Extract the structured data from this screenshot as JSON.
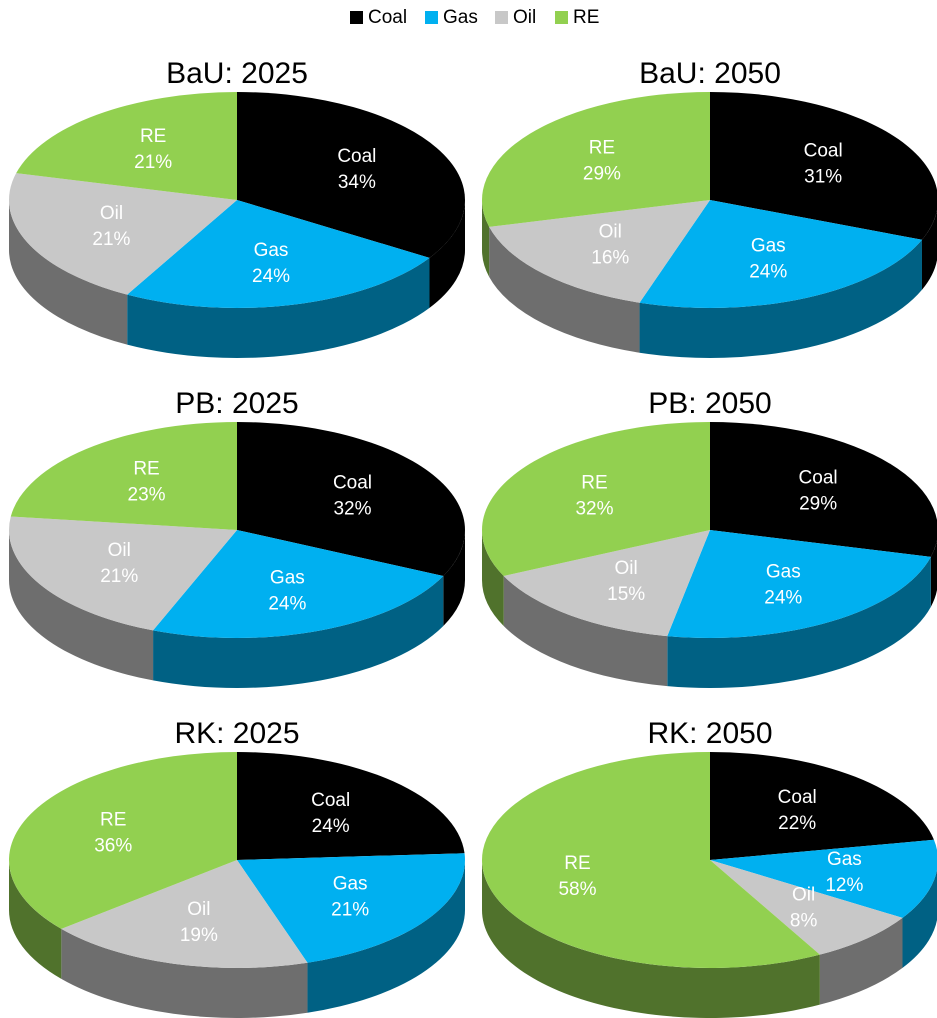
{
  "legend": {
    "labels": [
      "Coal",
      "Gas",
      "Oil",
      "RE"
    ],
    "colors": [
      "#000000",
      "#00b0f0",
      "#c8c8c8",
      "#92d050"
    ]
  },
  "chart_data": [
    {
      "type": "pie",
      "title": "BaU: 2025",
      "categories": [
        "Coal",
        "Gas",
        "Oil",
        "RE"
      ],
      "values": [
        34,
        24,
        21,
        21
      ],
      "value_labels": [
        "34%",
        "24%",
        "21%",
        "21%"
      ],
      "colors": [
        "#000000",
        "#00b0f0",
        "#c8c8c8",
        "#92d050"
      ]
    },
    {
      "type": "pie",
      "title": "BaU: 2050",
      "categories": [
        "Coal",
        "Gas",
        "Oil",
        "RE"
      ],
      "values": [
        31,
        24,
        16,
        29
      ],
      "value_labels": [
        "31%",
        "24%",
        "16%",
        "29%"
      ],
      "colors": [
        "#000000",
        "#00b0f0",
        "#c8c8c8",
        "#92d050"
      ]
    },
    {
      "type": "pie",
      "title": "PB: 2025",
      "categories": [
        "Coal",
        "Gas",
        "Oil",
        "RE"
      ],
      "values": [
        32,
        24,
        21,
        23
      ],
      "value_labels": [
        "32%",
        "24%",
        "21%",
        "23%"
      ],
      "colors": [
        "#000000",
        "#00b0f0",
        "#c8c8c8",
        "#92d050"
      ]
    },
    {
      "type": "pie",
      "title": "PB: 2050",
      "categories": [
        "Coal",
        "Gas",
        "Oil",
        "RE"
      ],
      "values": [
        29,
        24,
        15,
        32
      ],
      "value_labels": [
        "29%",
        "24%",
        "15%",
        "32%"
      ],
      "colors": [
        "#000000",
        "#00b0f0",
        "#c8c8c8",
        "#92d050"
      ]
    },
    {
      "type": "pie",
      "title": "RK: 2025",
      "categories": [
        "Coal",
        "Gas",
        "Oil",
        "RE"
      ],
      "values": [
        24,
        21,
        19,
        36
      ],
      "value_labels": [
        "24%",
        "21%",
        "19%",
        "36%"
      ],
      "colors": [
        "#000000",
        "#00b0f0",
        "#c8c8c8",
        "#92d050"
      ]
    },
    {
      "type": "pie",
      "title": "RK: 2050",
      "categories": [
        "Coal",
        "Gas",
        "Oil",
        "RE"
      ],
      "values": [
        22,
        12,
        8,
        58
      ],
      "value_labels": [
        "22%",
        "12%",
        "8%",
        "58%"
      ],
      "colors": [
        "#000000",
        "#00b0f0",
        "#c8c8c8",
        "#92d050"
      ]
    }
  ]
}
